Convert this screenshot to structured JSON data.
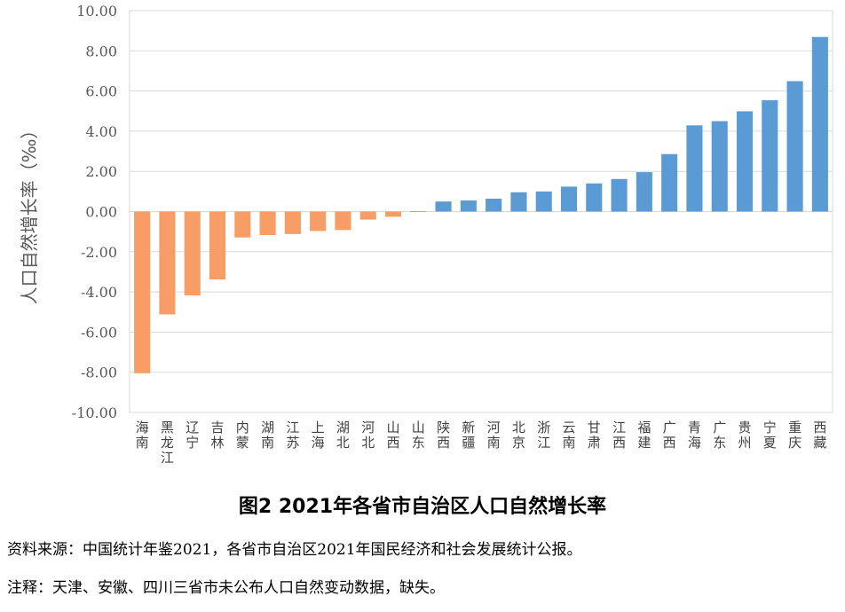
{
  "chart_data": {
    "type": "bar",
    "title": "图2 2021年各省市自治区人口自然增长率",
    "ylabel": "人口自然增长率（‰）",
    "xlabel": "",
    "ylim": [
      -10,
      10
    ],
    "yticks": [
      "10.00",
      "8.00",
      "6.00",
      "4.00",
      "2.00",
      "0.00",
      "-2.00",
      "-4.00",
      "-6.00",
      "-8.00",
      "-10.00"
    ],
    "grid": true,
    "colors": {
      "negative": "#f79d65",
      "positive": "#5b9bd5",
      "grid": "#d9d9d9",
      "axis": "#000000"
    },
    "categories": [
      "海南",
      "黑龙江",
      "辽宁",
      "吉林",
      "内蒙",
      "湖南",
      "江苏",
      "上海",
      "湖北",
      "河北",
      "山西",
      "山东",
      "陕西",
      "新疆",
      "河南",
      "北京",
      "浙江",
      "云南",
      "甘肃",
      "江西",
      "福建",
      "广西",
      "青海",
      "广东",
      "贵州",
      "宁夏",
      "重庆",
      "西藏"
    ],
    "values": [
      -8.05,
      -5.12,
      -4.18,
      -3.38,
      -1.29,
      -1.17,
      -1.12,
      -0.97,
      -0.92,
      -0.4,
      -0.26,
      0.02,
      0.5,
      0.55,
      0.64,
      0.96,
      1.0,
      1.24,
      1.4,
      1.62,
      1.96,
      2.86,
      4.29,
      4.5,
      4.99,
      5.54,
      6.49,
      8.69
    ]
  },
  "captions": {
    "figure": "图2   2021年各省市自治区人口自然增长率",
    "source": "资料来源：中国统计年鉴2021，各省市自治区2021年国民经济和社会发展统计公报。",
    "note": "注释：天津、安徽、四川三省市未公布人口自然变动数据，缺失。"
  }
}
